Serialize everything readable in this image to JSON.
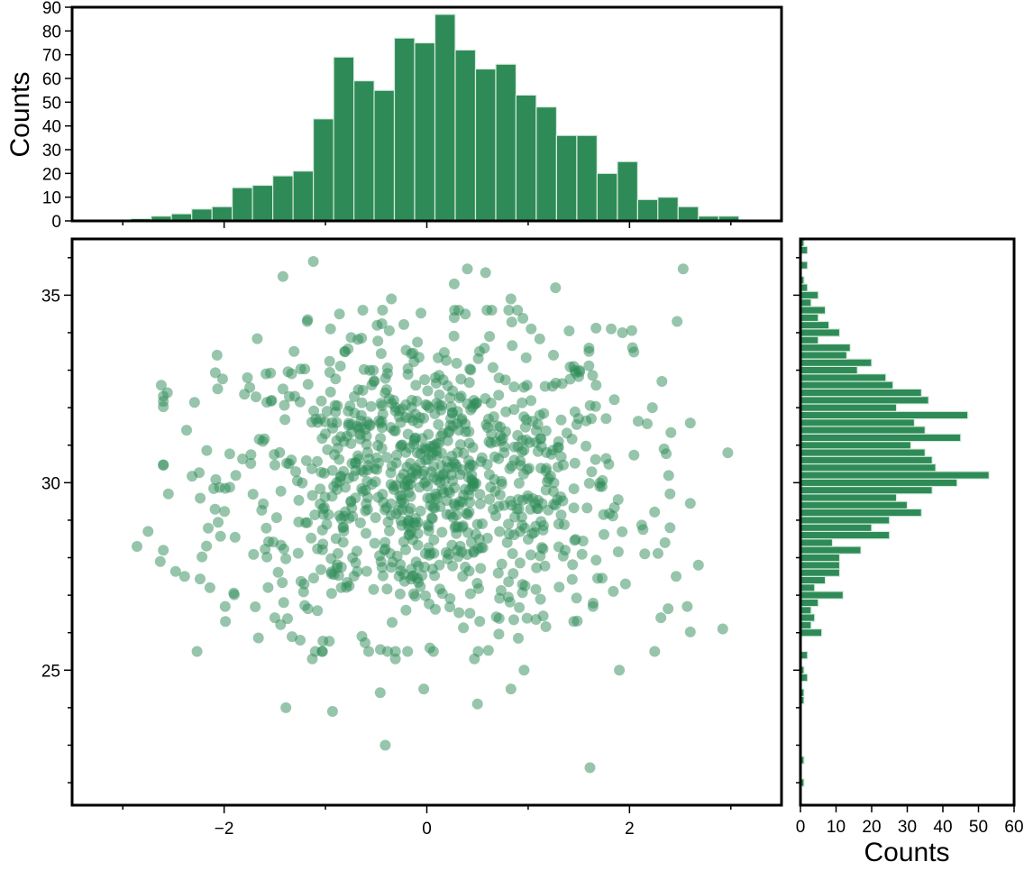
{
  "chart_data": [
    {
      "type": "scatter",
      "panel": "main",
      "marker_color": "#2e8b57",
      "marker_opacity": 0.5,
      "xlim": [
        -3.5,
        3.5
      ],
      "ylim": [
        21.4,
        36.5
      ],
      "xticks": [
        -2,
        0,
        2
      ],
      "xtick_labels": [
        "−2",
        "0",
        "2"
      ],
      "yticks": [
        25,
        30,
        35
      ],
      "ytick_labels": [
        "25",
        "30",
        "35"
      ],
      "n_points": 1000,
      "mean_x": 0.0,
      "std_x": 1.0,
      "mean_y": 30.0,
      "std_y": 2.0,
      "points": [
        [
          -1.12,
          35.9
        ],
        [
          -1.42,
          35.5
        ],
        [
          0.4,
          35.7
        ],
        [
          0.58,
          35.6
        ],
        [
          2.53,
          35.7
        ],
        [
          0.27,
          35.3
        ],
        [
          1.27,
          35.2
        ],
        [
          -0.35,
          34.9
        ],
        [
          0.83,
          34.9
        ],
        [
          2.47,
          34.3
        ],
        [
          -1.18,
          34.3
        ],
        [
          -0.49,
          34.2
        ],
        [
          0.27,
          34.4
        ],
        [
          0.38,
          34.5
        ],
        [
          1.03,
          34.1
        ],
        [
          1.82,
          34.1
        ],
        [
          1.93,
          34.0
        ],
        [
          -0.95,
          34.1
        ],
        [
          -2.07,
          33.4
        ],
        [
          2.03,
          33.6
        ],
        [
          1.25,
          33.4
        ],
        [
          1.6,
          33.5
        ],
        [
          -1.31,
          33.5
        ],
        [
          -0.81,
          33.5
        ],
        [
          0.52,
          33.5
        ],
        [
          -2.62,
          32.6
        ],
        [
          -2.56,
          32.4
        ],
        [
          -1.42,
          32.5
        ],
        [
          -1.77,
          32.8
        ],
        [
          2.32,
          32.7
        ],
        [
          1.67,
          32.6
        ],
        [
          1.45,
          33.1
        ],
        [
          2.97,
          30.8
        ],
        [
          -2.86,
          28.3
        ],
        [
          -2.75,
          28.7
        ],
        [
          -2.63,
          27.9
        ],
        [
          -2.39,
          27.5
        ],
        [
          -2.14,
          27.2
        ],
        [
          -1.99,
          26.7
        ],
        [
          -2.37,
          31.4
        ],
        [
          -2.55,
          29.7
        ],
        [
          2.35,
          28.4
        ],
        [
          2.57,
          26.7
        ],
        [
          2.46,
          27.5
        ],
        [
          2.68,
          27.8
        ],
        [
          2.92,
          26.1
        ],
        [
          2.31,
          26.4
        ],
        [
          2.4,
          29.7
        ],
        [
          2.4,
          28.8
        ],
        [
          1.61,
          22.4
        ],
        [
          -0.41,
          23.0
        ],
        [
          -0.93,
          23.9
        ],
        [
          -1.39,
          24.0
        ],
        [
          -0.46,
          24.4
        ],
        [
          -0.03,
          24.5
        ],
        [
          0.5,
          24.1
        ],
        [
          0.83,
          24.5
        ],
        [
          1.9,
          25.0
        ],
        [
          0.96,
          25.0
        ],
        [
          0.47,
          25.3
        ],
        [
          -0.31,
          25.3
        ],
        [
          -1.13,
          25.3
        ],
        [
          -1.1,
          25.5
        ],
        [
          -1.25,
          25.8
        ],
        [
          -0.64,
          25.9
        ],
        [
          1.45,
          26.3
        ],
        [
          1.64,
          26.7
        ],
        [
          1.84,
          27.1
        ],
        [
          1.96,
          27.3
        ],
        [
          -1.5,
          26.4
        ]
      ]
    },
    {
      "type": "bar",
      "panel": "top",
      "orientation": "vertical",
      "color": "#2e8b57",
      "ylabel": "Counts",
      "ylim": [
        0,
        90
      ],
      "yticks": [
        0,
        10,
        20,
        30,
        40,
        50,
        60,
        70,
        80,
        90
      ],
      "bin_start": -2.92,
      "bin_width": 0.2,
      "counts": [
        1,
        2,
        3,
        5,
        6,
        14,
        15,
        19,
        21,
        43,
        69,
        59,
        55,
        77,
        75,
        87,
        72,
        64,
        66,
        53,
        48,
        36,
        36,
        20,
        25,
        9,
        10,
        6,
        2,
        2
      ]
    },
    {
      "type": "bar",
      "panel": "right",
      "orientation": "horizontal",
      "color": "#2e8b57",
      "xlabel": "Counts",
      "xlim": [
        0,
        60
      ],
      "xticks": [
        0,
        10,
        20,
        30,
        40,
        50,
        60
      ],
      "bin_start": 21.9,
      "bin_width": 0.2,
      "counts": [
        1,
        0,
        0,
        1,
        0,
        0,
        0,
        0,
        0,
        0,
        0,
        1,
        1,
        0,
        2,
        1,
        0,
        2,
        0,
        0,
        6,
        3,
        4,
        3,
        5,
        12,
        4,
        7,
        11,
        11,
        11,
        17,
        9,
        25,
        20,
        25,
        34,
        30,
        27,
        37,
        44,
        53,
        38,
        37,
        35,
        31,
        45,
        35,
        32,
        47,
        27,
        36,
        34,
        26,
        24,
        16,
        20,
        13,
        14,
        5,
        11,
        8,
        5,
        7,
        3,
        5,
        2,
        1,
        0,
        2,
        0,
        2,
        1
      ]
    }
  ]
}
